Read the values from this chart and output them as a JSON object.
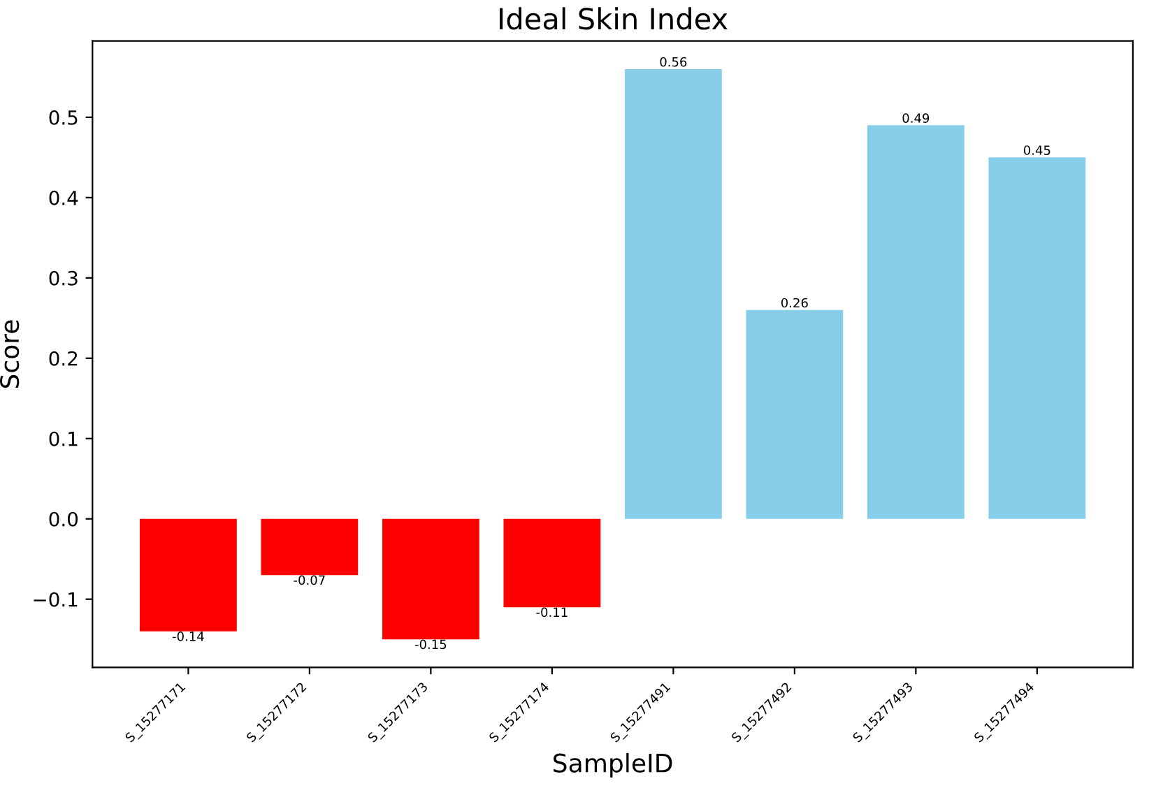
{
  "chart_data": {
    "type": "bar",
    "title": "Ideal Skin Index",
    "xlabel": "SampleID",
    "ylabel": "Score",
    "categories": [
      "S_15277171",
      "S_15277172",
      "S_15277173",
      "S_15277174",
      "S_15277491",
      "S_15277492",
      "S_15277493",
      "S_15277494"
    ],
    "values": [
      -0.14,
      -0.07,
      -0.15,
      -0.11,
      0.56,
      0.26,
      0.49,
      0.45
    ],
    "colors": [
      "#ff0000",
      "#ff0000",
      "#ff0000",
      "#ff0000",
      "#87ceeb",
      "#87ceeb",
      "#87ceeb",
      "#87ceeb"
    ],
    "data_labels": true,
    "ylim": [
      -0.185,
      0.595
    ],
    "yticks": [
      {
        "value": -0.1,
        "label": "−0.1"
      },
      {
        "value": 0.0,
        "label": "0.0"
      },
      {
        "value": 0.1,
        "label": "0.1"
      },
      {
        "value": 0.2,
        "label": "0.2"
      },
      {
        "value": 0.3,
        "label": "0.3"
      },
      {
        "value": 0.4,
        "label": "0.4"
      },
      {
        "value": 0.5,
        "label": "0.5"
      }
    ],
    "grid": false
  }
}
